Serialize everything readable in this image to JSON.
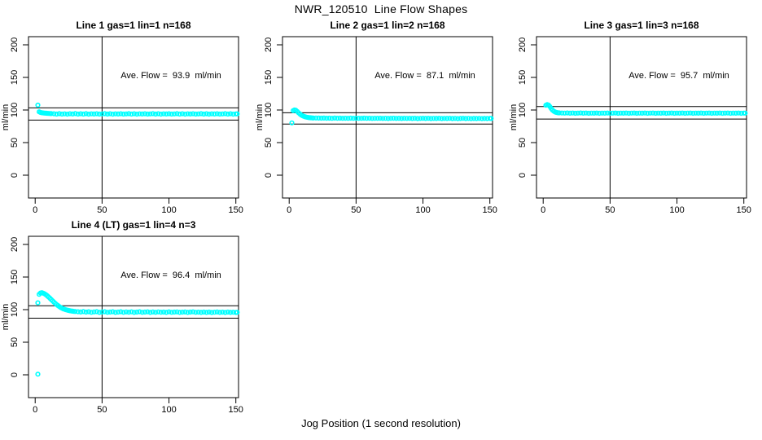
{
  "figure": {
    "main_title": "NWR_120510  Line Flow Shapes",
    "x_axis_label": "Jog Position (1 second resolution)"
  },
  "colors": {
    "point": "#00FFFF",
    "axis": "#000000",
    "background": "#FFFFFF"
  },
  "chart_data": [
    {
      "type": "scatter",
      "title": "Line 1 gas=1 lin=1 n=168",
      "annotation": "Ave. Flow =  93.9  ml/min",
      "ave_flow_ml_min": 93.9,
      "n": 168,
      "ylabel": "ml/min",
      "xlim": [
        -5,
        152
      ],
      "ylim": [
        -35,
        212.5
      ],
      "x_ticks": [
        0,
        50,
        100,
        150
      ],
      "y_ticks": [
        0,
        50,
        100,
        150,
        200
      ],
      "vline_x": 50,
      "hlines": [
        103.3,
        84.5
      ],
      "points": [
        [
          2,
          107.5
        ],
        [
          3,
          97.2
        ],
        [
          4,
          96.3
        ],
        [
          5,
          95.8
        ],
        [
          6,
          95.5
        ],
        [
          7,
          95.3
        ],
        [
          8,
          95.1
        ],
        [
          9,
          94.9
        ],
        [
          10,
          94.8
        ],
        [
          11,
          94.6
        ],
        [
          12,
          94.5
        ],
        [
          14,
          94.2
        ],
        [
          16,
          93.7
        ],
        [
          18,
          94.4
        ],
        [
          20,
          93.8
        ],
        [
          22,
          94.1
        ],
        [
          24,
          93.6
        ],
        [
          26,
          94.3
        ],
        [
          28,
          93.9
        ],
        [
          30,
          94.5
        ],
        [
          32,
          93.7
        ],
        [
          34,
          94.2
        ],
        [
          36,
          93.8
        ],
        [
          38,
          94.4
        ],
        [
          40,
          93.6
        ],
        [
          42,
          94.1
        ],
        [
          44,
          93.9
        ],
        [
          46,
          94.3
        ],
        [
          48,
          93.7
        ],
        [
          50,
          94.0
        ],
        [
          52,
          94.4
        ],
        [
          54,
          93.8
        ],
        [
          56,
          94.2
        ],
        [
          58,
          93.6
        ],
        [
          60,
          94.1
        ],
        [
          62,
          93.9
        ],
        [
          64,
          94.3
        ],
        [
          66,
          93.7
        ],
        [
          68,
          94.0
        ],
        [
          70,
          94.4
        ],
        [
          72,
          93.8
        ],
        [
          74,
          94.2
        ],
        [
          76,
          93.6
        ],
        [
          78,
          94.1
        ],
        [
          80,
          93.9
        ],
        [
          82,
          94.3
        ],
        [
          84,
          93.7
        ],
        [
          86,
          94.0
        ],
        [
          88,
          94.4
        ],
        [
          90,
          93.8
        ],
        [
          92,
          94.2
        ],
        [
          94,
          93.6
        ],
        [
          96,
          94.1
        ],
        [
          98,
          93.9
        ],
        [
          100,
          94.3
        ],
        [
          102,
          93.7
        ],
        [
          104,
          94.0
        ],
        [
          106,
          94.4
        ],
        [
          108,
          93.8
        ],
        [
          110,
          94.2
        ],
        [
          112,
          93.6
        ],
        [
          114,
          94.1
        ],
        [
          116,
          93.9
        ],
        [
          118,
          94.3
        ],
        [
          120,
          93.7
        ],
        [
          122,
          94.0
        ],
        [
          124,
          94.4
        ],
        [
          126,
          93.8
        ],
        [
          128,
          94.2
        ],
        [
          130,
          93.6
        ],
        [
          132,
          94.1
        ],
        [
          134,
          93.9
        ],
        [
          136,
          94.3
        ],
        [
          138,
          93.7
        ],
        [
          140,
          94.0
        ],
        [
          142,
          94.4
        ],
        [
          144,
          93.8
        ],
        [
          146,
          94.2
        ],
        [
          148,
          93.6
        ],
        [
          150,
          94.0
        ],
        [
          151,
          94.1
        ]
      ]
    },
    {
      "type": "scatter",
      "title": "Line 2 gas=1 lin=2 n=168",
      "annotation": "Ave. Flow =  87.1  ml/min",
      "ave_flow_ml_min": 87.1,
      "n": 168,
      "ylabel": "ml/min",
      "xlim": [
        -5,
        152
      ],
      "ylim": [
        -35,
        212.5
      ],
      "x_ticks": [
        0,
        50,
        100,
        150
      ],
      "y_ticks": [
        0,
        50,
        100,
        150,
        200
      ],
      "vline_x": 50,
      "hlines": [
        95.8,
        78.4
      ],
      "points": [
        [
          2,
          80.2
        ],
        [
          3,
          99.0
        ],
        [
          4,
          100.0
        ],
        [
          5,
          99.5
        ],
        [
          6,
          97.8
        ],
        [
          7,
          95.8
        ],
        [
          8,
          93.9
        ],
        [
          9,
          92.3
        ],
        [
          10,
          91.1
        ],
        [
          11,
          90.2
        ],
        [
          12,
          89.5
        ],
        [
          13,
          89.0
        ],
        [
          14,
          88.6
        ],
        [
          15,
          88.3
        ],
        [
          16,
          88.1
        ],
        [
          17,
          87.9
        ],
        [
          18,
          87.8
        ],
        [
          20,
          87.7
        ],
        [
          22,
          87.6
        ],
        [
          24,
          87.5
        ],
        [
          26,
          87.6
        ],
        [
          28,
          87.4
        ],
        [
          30,
          87.5
        ],
        [
          32,
          87.3
        ],
        [
          34,
          87.6
        ],
        [
          36,
          87.4
        ],
        [
          38,
          87.5
        ],
        [
          40,
          87.3
        ],
        [
          42,
          87.4
        ],
        [
          44,
          87.2
        ],
        [
          46,
          87.5
        ],
        [
          48,
          87.3
        ],
        [
          50,
          87.4
        ],
        [
          52,
          87.2
        ],
        [
          54,
          87.3
        ],
        [
          56,
          87.5
        ],
        [
          58,
          87.2
        ],
        [
          60,
          87.4
        ],
        [
          62,
          87.1
        ],
        [
          64,
          87.3
        ],
        [
          66,
          87.2
        ],
        [
          68,
          87.4
        ],
        [
          70,
          87.1
        ],
        [
          72,
          87.3
        ],
        [
          74,
          87.0
        ],
        [
          76,
          87.2
        ],
        [
          78,
          87.4
        ],
        [
          80,
          87.1
        ],
        [
          82,
          87.3
        ],
        [
          84,
          87.0
        ],
        [
          86,
          87.2
        ],
        [
          88,
          87.1
        ],
        [
          90,
          87.3
        ],
        [
          92,
          87.0
        ],
        [
          94,
          87.2
        ],
        [
          96,
          86.9
        ],
        [
          98,
          87.1
        ],
        [
          100,
          87.3
        ],
        [
          102,
          87.0
        ],
        [
          104,
          87.2
        ],
        [
          106,
          86.9
        ],
        [
          108,
          87.1
        ],
        [
          110,
          87.0
        ],
        [
          112,
          87.2
        ],
        [
          114,
          86.9
        ],
        [
          116,
          87.1
        ],
        [
          118,
          87.0
        ],
        [
          120,
          87.2
        ],
        [
          122,
          86.9
        ],
        [
          124,
          87.1
        ],
        [
          126,
          86.8
        ],
        [
          128,
          87.0
        ],
        [
          130,
          87.2
        ],
        [
          132,
          86.9
        ],
        [
          134,
          87.1
        ],
        [
          136,
          86.8
        ],
        [
          138,
          87.0
        ],
        [
          140,
          86.9
        ],
        [
          142,
          87.1
        ],
        [
          144,
          86.8
        ],
        [
          146,
          87.0
        ],
        [
          148,
          86.9
        ],
        [
          150,
          87.1
        ],
        [
          151,
          87.0
        ]
      ]
    },
    {
      "type": "scatter",
      "title": "Line 3 gas=1 lin=3 n=168",
      "annotation": "Ave. Flow =  95.7  ml/min",
      "ave_flow_ml_min": 95.7,
      "n": 168,
      "ylabel": "ml/min",
      "xlim": [
        -5,
        152
      ],
      "ylim": [
        -35,
        212.5
      ],
      "x_ticks": [
        0,
        50,
        100,
        150
      ],
      "y_ticks": [
        0,
        50,
        100,
        150,
        200
      ],
      "vline_x": 50,
      "hlines": [
        105.3,
        86.1
      ],
      "points": [
        [
          2,
          107.3
        ],
        [
          3,
          108.2
        ],
        [
          4,
          107.5
        ],
        [
          5,
          105.2
        ],
        [
          6,
          102.3
        ],
        [
          7,
          99.7
        ],
        [
          8,
          98.0
        ],
        [
          9,
          96.9
        ],
        [
          10,
          96.2
        ],
        [
          11,
          95.8
        ],
        [
          12,
          95.6
        ],
        [
          14,
          95.4
        ],
        [
          16,
          95.2
        ],
        [
          18,
          95.5
        ],
        [
          20,
          95.1
        ],
        [
          22,
          95.4
        ],
        [
          24,
          95.0
        ],
        [
          26,
          95.3
        ],
        [
          28,
          95.5
        ],
        [
          30,
          95.1
        ],
        [
          32,
          95.4
        ],
        [
          34,
          95.0
        ],
        [
          36,
          95.3
        ],
        [
          38,
          95.1
        ],
        [
          40,
          95.4
        ],
        [
          42,
          95.0
        ],
        [
          44,
          95.3
        ],
        [
          46,
          95.1
        ],
        [
          48,
          95.4
        ],
        [
          50,
          95.0
        ],
        [
          52,
          95.2
        ],
        [
          54,
          95.4
        ],
        [
          56,
          95.0
        ],
        [
          58,
          95.3
        ],
        [
          60,
          95.1
        ],
        [
          62,
          95.4
        ],
        [
          64,
          95.0
        ],
        [
          66,
          95.2
        ],
        [
          68,
          95.4
        ],
        [
          70,
          95.0
        ],
        [
          72,
          95.3
        ],
        [
          74,
          95.1
        ],
        [
          76,
          95.4
        ],
        [
          78,
          95.0
        ],
        [
          80,
          95.2
        ],
        [
          82,
          95.4
        ],
        [
          84,
          95.0
        ],
        [
          86,
          95.3
        ],
        [
          88,
          95.1
        ],
        [
          90,
          95.4
        ],
        [
          92,
          95.0
        ],
        [
          94,
          95.2
        ],
        [
          96,
          95.4
        ],
        [
          98,
          95.0
        ],
        [
          100,
          95.3
        ],
        [
          102,
          95.1
        ],
        [
          104,
          95.4
        ],
        [
          106,
          95.0
        ],
        [
          108,
          95.2
        ],
        [
          110,
          95.4
        ],
        [
          112,
          95.0
        ],
        [
          114,
          95.3
        ],
        [
          116,
          95.1
        ],
        [
          118,
          95.4
        ],
        [
          120,
          95.0
        ],
        [
          122,
          95.2
        ],
        [
          124,
          95.4
        ],
        [
          126,
          95.0
        ],
        [
          128,
          95.3
        ],
        [
          130,
          95.1
        ],
        [
          132,
          95.4
        ],
        [
          134,
          95.0
        ],
        [
          136,
          95.2
        ],
        [
          138,
          95.4
        ],
        [
          140,
          95.0
        ],
        [
          142,
          95.3
        ],
        [
          144,
          95.1
        ],
        [
          146,
          95.4
        ],
        [
          148,
          95.0
        ],
        [
          150,
          95.2
        ],
        [
          151,
          95.3
        ]
      ]
    },
    {
      "type": "scatter",
      "title": "Line 4 (LT) gas=1 lin=4 n=3",
      "annotation": "Ave. Flow =  96.4  ml/min",
      "ave_flow_ml_min": 96.4,
      "n": 3,
      "ylabel": "ml/min",
      "xlim": [
        -5,
        152
      ],
      "ylim": [
        -35,
        212.5
      ],
      "x_ticks": [
        0,
        50,
        100,
        150
      ],
      "y_ticks": [
        0,
        50,
        100,
        150,
        200
      ],
      "vline_x": 50,
      "hlines": [
        106.0,
        86.8
      ],
      "points": [
        [
          2,
          1.0
        ],
        [
          2,
          110.5
        ],
        [
          3,
          123.5
        ],
        [
          4,
          125.5
        ],
        [
          5,
          126.0
        ],
        [
          6,
          125.3
        ],
        [
          7,
          124.3
        ],
        [
          8,
          122.9
        ],
        [
          9,
          121.3
        ],
        [
          10,
          119.5
        ],
        [
          11,
          117.5
        ],
        [
          12,
          115.5
        ],
        [
          13,
          113.5
        ],
        [
          14,
          111.5
        ],
        [
          15,
          109.6
        ],
        [
          16,
          107.8
        ],
        [
          17,
          106.2
        ],
        [
          18,
          104.7
        ],
        [
          19,
          103.4
        ],
        [
          20,
          102.3
        ],
        [
          21,
          101.3
        ],
        [
          22,
          100.5
        ],
        [
          23,
          99.8
        ],
        [
          24,
          99.2
        ],
        [
          25,
          98.7
        ],
        [
          26,
          98.3
        ],
        [
          27,
          97.9
        ],
        [
          28,
          97.6
        ],
        [
          29,
          97.3
        ],
        [
          30,
          97.1
        ],
        [
          32,
          96.8
        ],
        [
          34,
          96.4
        ],
        [
          36,
          97.0
        ],
        [
          38,
          96.2
        ],
        [
          40,
          96.7
        ],
        [
          42,
          95.9
        ],
        [
          44,
          96.5
        ],
        [
          46,
          96.9
        ],
        [
          48,
          95.8
        ],
        [
          50,
          96.4
        ],
        [
          52,
          96.8
        ],
        [
          54,
          95.9
        ],
        [
          56,
          96.3
        ],
        [
          58,
          96.7
        ],
        [
          60,
          95.8
        ],
        [
          62,
          96.2
        ],
        [
          64,
          96.8
        ],
        [
          66,
          95.9
        ],
        [
          68,
          96.5
        ],
        [
          70,
          96.0
        ],
        [
          72,
          96.6
        ],
        [
          74,
          95.8
        ],
        [
          76,
          96.3
        ],
        [
          78,
          96.7
        ],
        [
          80,
          95.9
        ],
        [
          82,
          96.2
        ],
        [
          84,
          96.6
        ],
        [
          86,
          95.8
        ],
        [
          88,
          96.4
        ],
        [
          90,
          95.9
        ],
        [
          92,
          96.5
        ],
        [
          94,
          96.0
        ],
        [
          96,
          96.3
        ],
        [
          98,
          95.8
        ],
        [
          100,
          96.6
        ],
        [
          102,
          95.9
        ],
        [
          104,
          96.2
        ],
        [
          106,
          96.5
        ],
        [
          108,
          95.8
        ],
        [
          110,
          96.1
        ],
        [
          112,
          96.4
        ],
        [
          114,
          95.8
        ],
        [
          116,
          96.2
        ],
        [
          118,
          96.6
        ],
        [
          120,
          95.9
        ],
        [
          122,
          96.1
        ],
        [
          124,
          95.7
        ],
        [
          126,
          96.3
        ],
        [
          128,
          95.8
        ],
        [
          130,
          96.2
        ],
        [
          132,
          95.6
        ],
        [
          134,
          96.0
        ],
        [
          136,
          96.4
        ],
        [
          138,
          95.7
        ],
        [
          140,
          96.1
        ],
        [
          142,
          95.6
        ],
        [
          144,
          96.2
        ],
        [
          146,
          95.8
        ],
        [
          148,
          96.0
        ],
        [
          150,
          95.6
        ],
        [
          151,
          95.9
        ]
      ]
    }
  ]
}
